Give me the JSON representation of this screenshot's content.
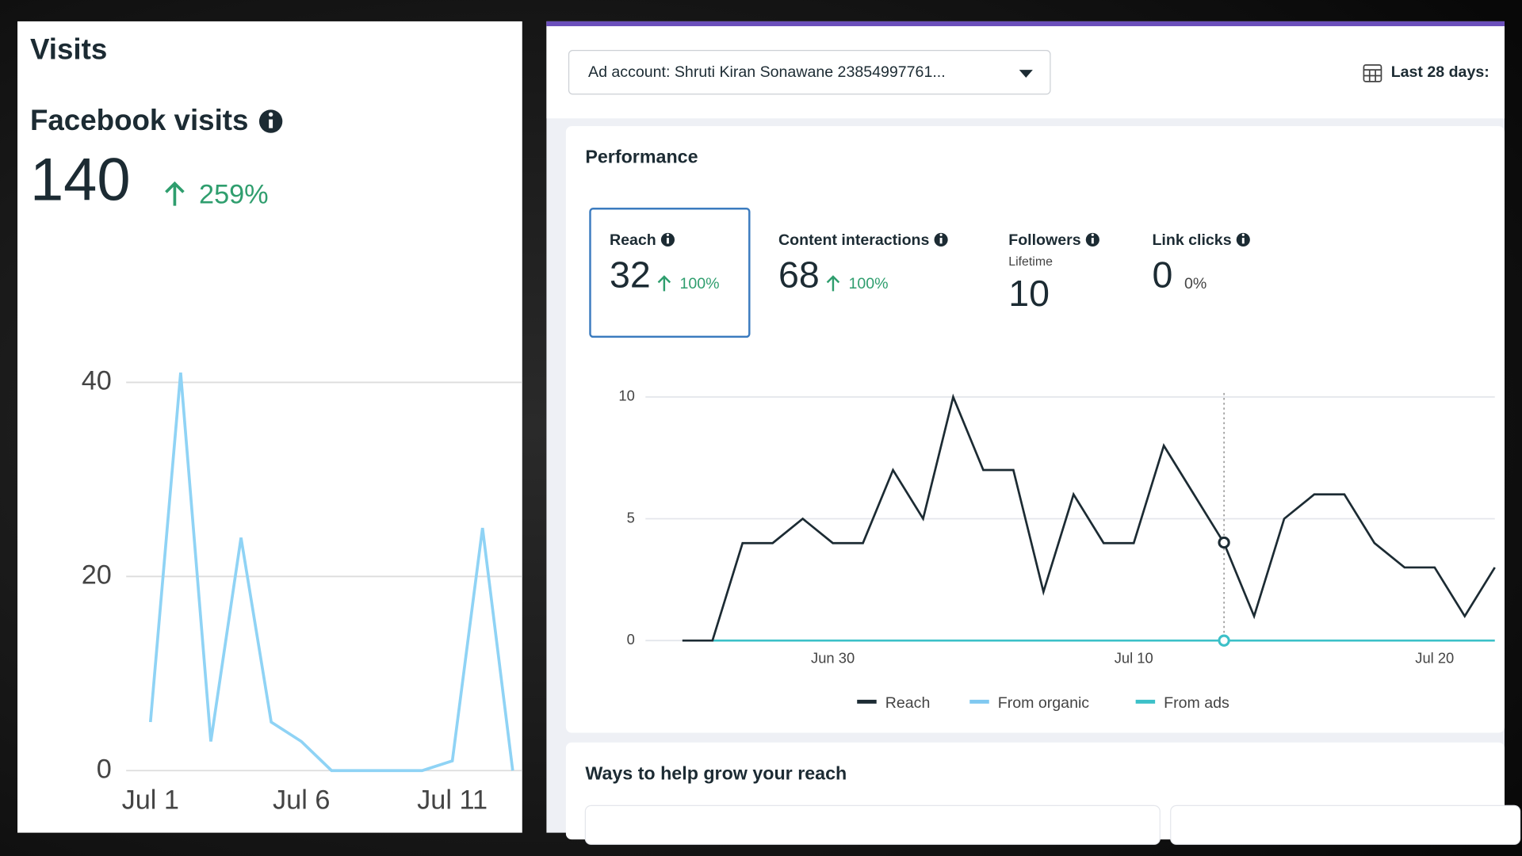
{
  "visits": {
    "title": "Visits",
    "label": "Facebook visits",
    "value": 140,
    "change": "259%"
  },
  "ad_account": "Ad account: Shruti Kiran Sonawane 23854997761...",
  "date_range": "Last 28 days:",
  "performance": {
    "title": "Performance",
    "metrics": [
      {
        "label": "Reach",
        "value": 32,
        "change": "100%"
      },
      {
        "label": "Content interactions",
        "value": 68,
        "change": "100%"
      },
      {
        "label": "Followers",
        "sublabel": "Lifetime",
        "value": 10
      },
      {
        "label": "Link clicks",
        "value": 0,
        "change": "0%"
      }
    ]
  },
  "grow_title": "Ways to help grow your reach",
  "chart_data": [
    {
      "type": "line",
      "categories": [
        "Jul 1",
        null,
        null,
        null,
        null,
        "Jul 6",
        null,
        null,
        null,
        null,
        "Jul 11",
        null,
        null
      ],
      "values": [
        5,
        41,
        3,
        24,
        5,
        3,
        0,
        0,
        0,
        0,
        1,
        25,
        0
      ],
      "color": "#8fd3f5",
      "ylim": [
        0,
        42
      ],
      "yticks": [
        0,
        20,
        40
      ],
      "grid": true
    },
    {
      "type": "line",
      "categories": [
        null,
        null,
        null,
        null,
        null,
        "Jun 30",
        null,
        null,
        null,
        null,
        null,
        null,
        null,
        null,
        null,
        "Jul 10",
        null,
        null,
        null,
        null,
        null,
        null,
        null,
        null,
        null,
        "Jul 20",
        null,
        null
      ],
      "series": [
        {
          "name": "Reach",
          "color": "#1c2b33",
          "values": [
            0,
            0,
            4,
            4,
            5,
            4,
            4,
            7,
            5,
            10,
            7,
            7,
            2,
            6,
            4,
            4,
            8,
            6,
            4,
            1,
            5,
            6,
            6,
            4,
            3,
            3,
            1,
            3
          ]
        },
        {
          "name": "From organic",
          "color": "#7fc8f0",
          "values": [
            null,
            null,
            null,
            null,
            null,
            null,
            null,
            null,
            null,
            null,
            null,
            null,
            null,
            null,
            null,
            null,
            null,
            null,
            null,
            null,
            null,
            null,
            null,
            null,
            null,
            null,
            null,
            null
          ]
        },
        {
          "name": "From ads",
          "color": "#3cc0c8",
          "values": [
            null,
            0,
            0,
            0,
            0,
            0,
            0,
            0,
            0,
            0,
            0,
            0,
            0,
            0,
            0,
            0,
            0,
            0,
            0,
            0,
            0,
            0,
            0,
            0,
            0,
            0,
            0,
            0
          ]
        }
      ],
      "ylim": [
        0,
        10
      ],
      "yticks": [
        0,
        5,
        10
      ],
      "grid": true,
      "legend": "bottom"
    }
  ]
}
